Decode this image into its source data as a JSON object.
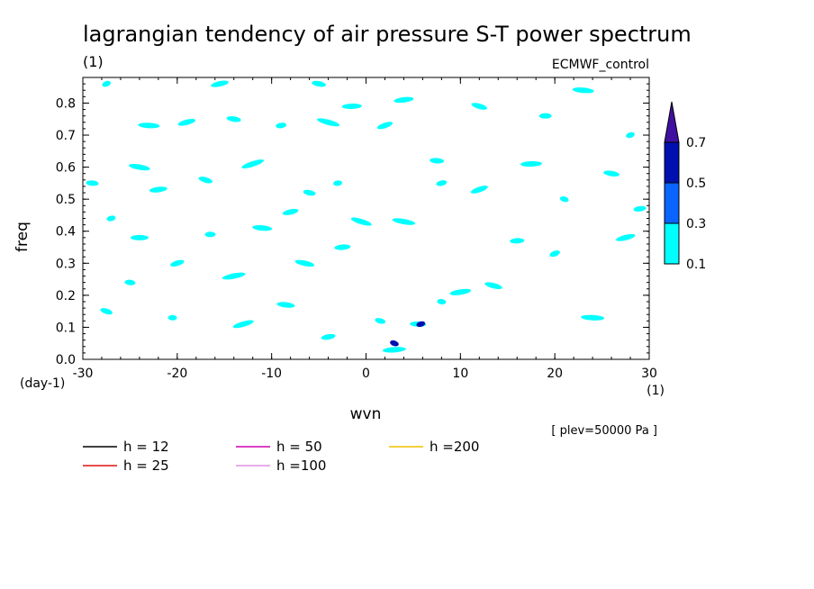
{
  "chart_data": {
    "type": "line",
    "title": "lagrangian tendency of air pressure S-T power spectrum",
    "units_label": "(1)",
    "source_label": "ECMWF_control",
    "xlabel": "wvn",
    "x_unit": "(1)",
    "ylabel": "freq",
    "y_unit": "(day-1)",
    "xlim": [
      -30,
      30
    ],
    "ylim": [
      0,
      0.88
    ],
    "x_ticks": [
      -30,
      -20,
      -10,
      0,
      10,
      20,
      30
    ],
    "x_tick_labels": [
      "-30",
      "-20",
      "-10",
      "0",
      "10",
      "20",
      "30"
    ],
    "y_ticks": [
      0,
      0.1,
      0.2,
      0.3,
      0.4,
      0.5,
      0.6,
      0.7,
      0.8
    ],
    "y_tick_labels": [
      "0.0",
      "0.1",
      "0.2",
      "0.3",
      "0.4",
      "0.5",
      "0.6",
      "0.7",
      "0.8"
    ],
    "annotation": "[ plev=50000 Pa ]",
    "series": [
      {
        "name": "h = 12",
        "equivalent_depth": 12,
        "color": "#000000"
      },
      {
        "name": "h = 25",
        "equivalent_depth": 25,
        "color": "#e01010"
      },
      {
        "name": "h = 50",
        "equivalent_depth": 50,
        "color": "#d000b0"
      },
      {
        "name": "h =100",
        "equivalent_depth": 100,
        "color": "#e090e0"
      },
      {
        "name": "h =200",
        "equivalent_depth": 200,
        "color": "#f0c000"
      }
    ],
    "colorbar": {
      "levels": [
        0.1,
        0.3,
        0.5,
        0.7
      ],
      "tick_labels": [
        "0.1",
        "0.3",
        "0.5",
        "0.7"
      ],
      "colors": [
        "#00ffff",
        "#0a64ff",
        "#0010b0",
        "#4010a0"
      ]
    },
    "contour_patches": [
      {
        "wvn": -27.5,
        "freq": 0.86,
        "level": 1
      },
      {
        "wvn": -23.0,
        "freq": 0.73,
        "level": 1
      },
      {
        "wvn": -19.0,
        "freq": 0.74,
        "level": 1
      },
      {
        "wvn": -14.0,
        "freq": 0.75,
        "level": 1
      },
      {
        "wvn": -9.0,
        "freq": 0.73,
        "level": 1
      },
      {
        "wvn": -4.0,
        "freq": 0.74,
        "level": 1
      },
      {
        "wvn": -1.5,
        "freq": 0.79,
        "level": 1
      },
      {
        "wvn": 2.0,
        "freq": 0.73,
        "level": 1
      },
      {
        "wvn": -29.0,
        "freq": 0.55,
        "level": 1
      },
      {
        "wvn": -27.0,
        "freq": 0.44,
        "level": 1
      },
      {
        "wvn": -24.0,
        "freq": 0.6,
        "level": 1
      },
      {
        "wvn": -22.0,
        "freq": 0.53,
        "level": 1
      },
      {
        "wvn": -17.0,
        "freq": 0.56,
        "level": 1
      },
      {
        "wvn": -16.5,
        "freq": 0.39,
        "level": 1
      },
      {
        "wvn": -12.0,
        "freq": 0.61,
        "level": 1
      },
      {
        "wvn": -11.0,
        "freq": 0.41,
        "level": 1
      },
      {
        "wvn": -8.0,
        "freq": 0.46,
        "level": 1
      },
      {
        "wvn": -6.0,
        "freq": 0.52,
        "level": 1
      },
      {
        "wvn": -3.0,
        "freq": 0.55,
        "level": 1
      },
      {
        "wvn": -0.5,
        "freq": 0.43,
        "level": 1
      },
      {
        "wvn": -24.0,
        "freq": 0.38,
        "level": 1
      },
      {
        "wvn": -20.0,
        "freq": 0.3,
        "level": 1
      },
      {
        "wvn": -25.0,
        "freq": 0.24,
        "level": 1
      },
      {
        "wvn": -14.0,
        "freq": 0.26,
        "level": 1
      },
      {
        "wvn": -6.5,
        "freq": 0.3,
        "level": 1
      },
      {
        "wvn": -2.5,
        "freq": 0.35,
        "level": 1
      },
      {
        "wvn": -27.5,
        "freq": 0.15,
        "level": 1
      },
      {
        "wvn": -20.5,
        "freq": 0.13,
        "level": 1
      },
      {
        "wvn": -13.0,
        "freq": 0.11,
        "level": 1
      },
      {
        "wvn": -8.5,
        "freq": 0.17,
        "level": 1
      },
      {
        "wvn": -4.0,
        "freq": 0.07,
        "level": 1
      },
      {
        "wvn": 1.5,
        "freq": 0.12,
        "level": 1
      },
      {
        "wvn": 3.0,
        "freq": 0.03,
        "level": 1
      },
      {
        "wvn": 3.0,
        "freq": 0.05,
        "level": 3
      },
      {
        "wvn": 5.5,
        "freq": 0.11,
        "level": 1
      },
      {
        "wvn": 5.8,
        "freq": 0.11,
        "level": 3
      },
      {
        "wvn": 8.0,
        "freq": 0.18,
        "level": 1
      },
      {
        "wvn": 10.0,
        "freq": 0.21,
        "level": 1
      },
      {
        "wvn": 13.5,
        "freq": 0.23,
        "level": 1
      },
      {
        "wvn": 16.0,
        "freq": 0.37,
        "level": 1
      },
      {
        "wvn": 20.0,
        "freq": 0.33,
        "level": 1
      },
      {
        "wvn": 24.0,
        "freq": 0.13,
        "level": 1
      },
      {
        "wvn": 27.5,
        "freq": 0.38,
        "level": 1
      },
      {
        "wvn": 26.0,
        "freq": 0.58,
        "level": 1
      },
      {
        "wvn": 29.0,
        "freq": 0.47,
        "level": 1
      },
      {
        "wvn": 21.0,
        "freq": 0.5,
        "level": 1
      },
      {
        "wvn": 17.5,
        "freq": 0.61,
        "level": 1
      },
      {
        "wvn": 12.0,
        "freq": 0.53,
        "level": 1
      },
      {
        "wvn": 7.5,
        "freq": 0.62,
        "level": 1
      },
      {
        "wvn": 8.0,
        "freq": 0.55,
        "level": 1
      },
      {
        "wvn": 4.0,
        "freq": 0.43,
        "level": 1
      },
      {
        "wvn": 4.0,
        "freq": 0.81,
        "level": 1
      },
      {
        "wvn": 12.0,
        "freq": 0.79,
        "level": 1
      },
      {
        "wvn": 19.0,
        "freq": 0.76,
        "level": 1
      },
      {
        "wvn": 28.0,
        "freq": 0.7,
        "level": 1
      },
      {
        "wvn": 23.0,
        "freq": 0.84,
        "level": 1
      },
      {
        "wvn": -15.5,
        "freq": 0.86,
        "level": 1
      },
      {
        "wvn": -5.0,
        "freq": 0.86,
        "level": 1
      }
    ]
  },
  "legend": {
    "items": [
      {
        "label": "h = 12",
        "color": "#000000"
      },
      {
        "label": "h = 25",
        "color": "#e01010"
      },
      {
        "label": "h = 50",
        "color": "#d000b0"
      },
      {
        "label": "h =100",
        "color": "#e090e0"
      },
      {
        "label": "h =200",
        "color": "#f0c000"
      }
    ]
  }
}
